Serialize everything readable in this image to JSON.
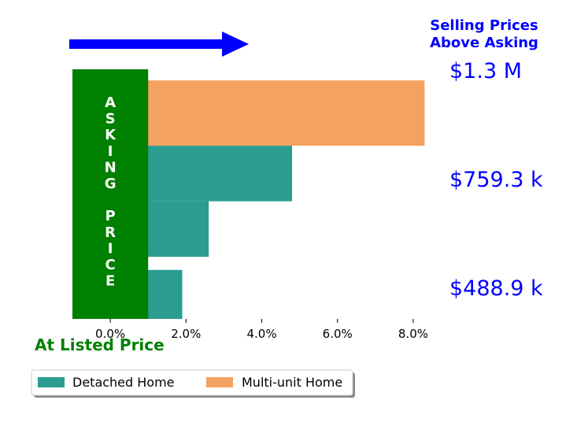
{
  "chart_data": {
    "type": "bar",
    "orientation": "horizontal",
    "x_axis": {
      "lim": [
        -1.0,
        8.5
      ],
      "ticks": [
        0,
        2,
        4,
        6,
        8
      ],
      "tick_labels": [
        "0.0%",
        "2.0%",
        "4.0%",
        "6.0%",
        "8.0%"
      ]
    },
    "bars": [
      {
        "series": "Multi-unit Home",
        "value": 8.3,
        "y_top": 0,
        "y_bottom": 1.0
      },
      {
        "series": "Detached Home",
        "value": 4.8,
        "y_top": 1.0,
        "y_bottom": 1.85
      },
      {
        "series": "Detached Home",
        "value": 2.6,
        "y_top": 1.85,
        "y_bottom": 2.7
      },
      {
        "series": "Detached Home",
        "value": 1.9,
        "y_top": 2.9,
        "y_bottom": 3.65
      }
    ],
    "y_lim": [
      -0.17,
      3.65
    ],
    "asking_band": {
      "x_from": -1.0,
      "x_to": 1.0,
      "color": "#008000",
      "letters": [
        "A",
        "S",
        "K",
        "I",
        "N",
        "G",
        "",
        "P",
        "R",
        "I",
        "C",
        "E"
      ]
    },
    "price_labels": [
      "$1.3 M",
      "$759.3 k",
      "$488.9 k"
    ],
    "header": [
      "Selling Prices",
      "Above Asking"
    ],
    "listed_label": "At Listed Price",
    "legend": {
      "position": "bottom-left",
      "items": [
        {
          "name": "Detached Home",
          "color": "#2a9d8f"
        },
        {
          "name": "Multi-unit Home",
          "color": "#f4a261"
        }
      ]
    },
    "arrow_color": "#0000ff",
    "grid": false
  }
}
